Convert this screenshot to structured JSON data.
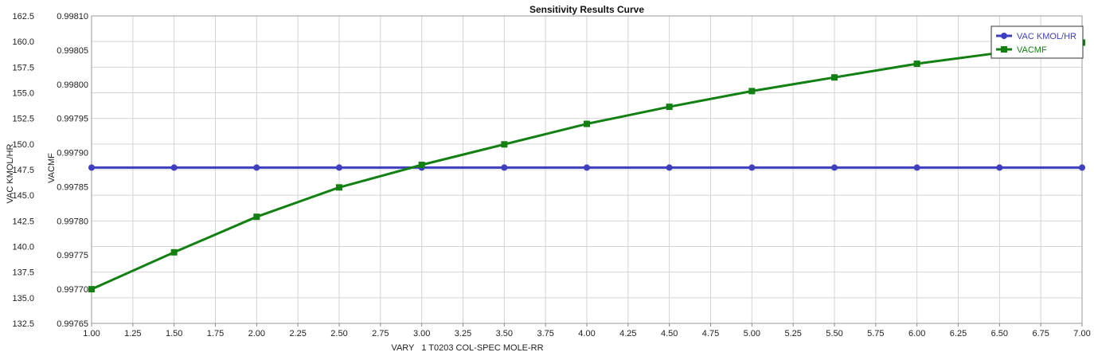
{
  "chart_data": {
    "type": "line",
    "title": "Sensitivity Results Curve",
    "xlabel": "VARY   1 T0203 COL-SPEC MOLE-RR",
    "x": [
      1.0,
      1.5,
      2.0,
      2.5,
      3.0,
      3.5,
      4.0,
      4.5,
      5.0,
      5.5,
      6.0,
      6.5,
      7.0
    ],
    "xlim": [
      1.0,
      7.0
    ],
    "x_ticks": [
      "1.00",
      "1.25",
      "1.50",
      "1.75",
      "2.00",
      "2.25",
      "2.50",
      "2.75",
      "3.00",
      "3.25",
      "3.50",
      "3.75",
      "4.00",
      "4.25",
      "4.50",
      "4.75",
      "5.00",
      "5.25",
      "5.50",
      "5.75",
      "6.00",
      "6.25",
      "6.50",
      "6.75",
      "7.00"
    ],
    "grid": true,
    "legend_position": "top-right",
    "y_axes": [
      {
        "label": "VAC KMOL/HR",
        "lim": [
          132.5,
          162.5
        ],
        "ticks": [
          "132.5",
          "135.0",
          "137.5",
          "140.0",
          "142.5",
          "145.0",
          "147.5",
          "150.0",
          "152.5",
          "155.0",
          "157.5",
          "160.0",
          "162.5"
        ]
      },
      {
        "label": "VACMF",
        "lim": [
          0.99765,
          0.9981
        ],
        "ticks": [
          "0.99765",
          "0.99770",
          "0.99775",
          "0.99780",
          "0.99785",
          "0.99790",
          "0.99795",
          "0.99800",
          "0.99805",
          "0.99810"
        ]
      }
    ],
    "series": [
      {
        "name": "VAC KMOL/HR",
        "axis": 0,
        "marker": "circle",
        "color": "#3f3fbf",
        "values": [
          147.7,
          147.7,
          147.7,
          147.7,
          147.7,
          147.7,
          147.7,
          147.7,
          147.7,
          147.7,
          147.7,
          147.7,
          147.7
        ]
      },
      {
        "name": "VACMF",
        "axis": 1,
        "marker": "square",
        "color": "#128012",
        "values": [
          0.9977,
          0.997754,
          0.997806,
          0.997849,
          0.997882,
          0.997912,
          0.997942,
          0.997967,
          0.99799,
          0.99801,
          0.99803,
          0.998046,
          0.998061
        ]
      }
    ]
  }
}
